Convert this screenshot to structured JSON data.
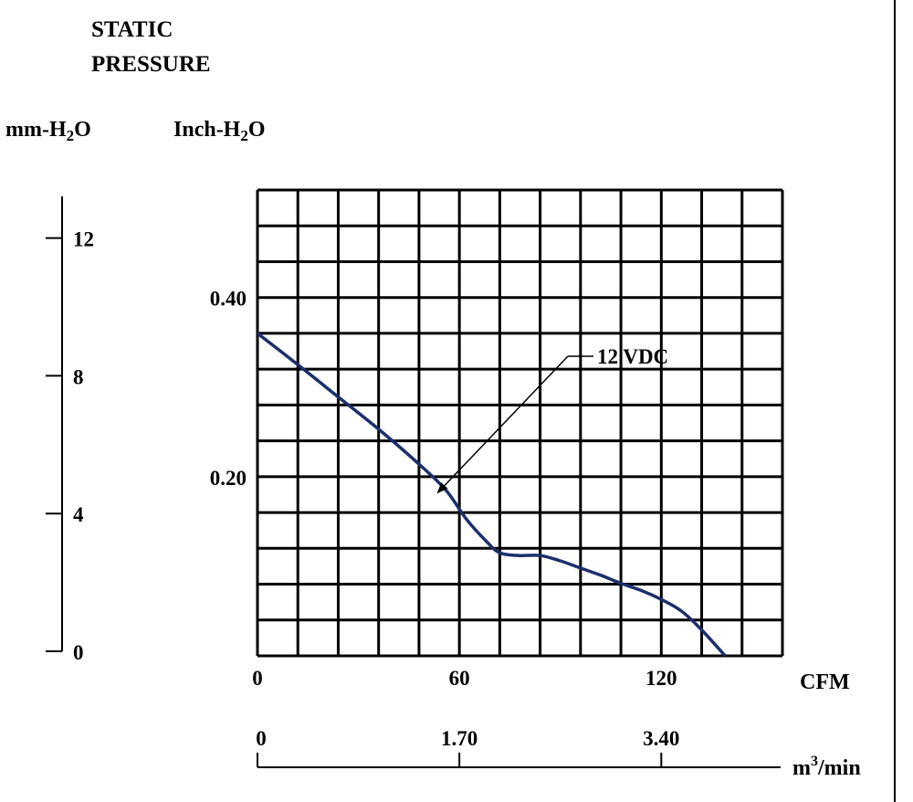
{
  "chart_data": {
    "type": "line",
    "title_line1": "STATIC",
    "title_line2": "PRESSURE",
    "ylabel_mm": "mm-H",
    "ylabel_mm_sub": "2",
    "ylabel_mm_tail": "O",
    "ylabel_inch": "Inch-H",
    "ylabel_inch_sub": "2",
    "ylabel_inch_tail": "O",
    "xlabel_cfm": "CFM",
    "xlabel_m3_pre": "m",
    "xlabel_m3_sup": "3",
    "xlabel_m3_post": "/min",
    "xlim": [
      0,
      156
    ],
    "ylim_inch": [
      0,
      0.52
    ],
    "ylim_mm": [
      0,
      13.21
    ],
    "grid": true,
    "grid_cols": 13,
    "grid_rows": 13,
    "x_ticks": [
      {
        "value": 0,
        "label": "0"
      },
      {
        "value": 60,
        "label": "60"
      },
      {
        "value": 120,
        "label": "120"
      }
    ],
    "y_ticks_inch": [
      {
        "value": 0.2,
        "label": "0.20"
      },
      {
        "value": 0.4,
        "label": "0.40"
      }
    ],
    "y_ticks_mm": [
      {
        "value": 0,
        "label": "0"
      },
      {
        "value": 4,
        "label": "4"
      },
      {
        "value": 8,
        "label": "8"
      },
      {
        "value": 12,
        "label": "12"
      }
    ],
    "m3_ticks": [
      {
        "value": 0,
        "label": "0"
      },
      {
        "value": 1.7,
        "label": "1.70"
      },
      {
        "value": 3.4,
        "label": "3.40"
      }
    ],
    "series": [
      {
        "name": "12 VDC",
        "color": "#1b2f6b",
        "x": [
          0,
          12,
          24,
          36,
          48,
          56,
          62,
          68,
          72,
          78,
          84,
          90,
          96,
          102,
          108,
          114,
          120,
          126,
          132,
          139
        ],
        "y": [
          0.36,
          0.325,
          0.289,
          0.253,
          0.214,
          0.185,
          0.153,
          0.128,
          0.115,
          0.112,
          0.112,
          0.106,
          0.098,
          0.09,
          0.081,
          0.073,
          0.063,
          0.05,
          0.029,
          0.0
        ]
      }
    ],
    "annotation": {
      "text": "12 VDC",
      "points_to_x": 53,
      "points_to_y": 0.18
    }
  }
}
